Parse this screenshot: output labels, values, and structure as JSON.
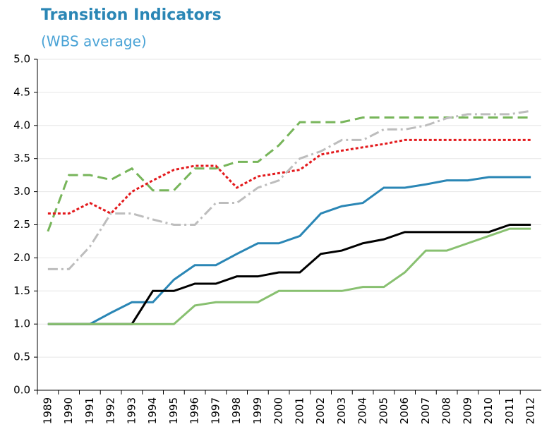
{
  "chart_data": {
    "type": "line",
    "title": "Transition Indicators",
    "subtitle": "(WBS average)",
    "categories": [
      "1989",
      "1990",
      "1991",
      "1992",
      "1993",
      "1994",
      "1995",
      "1996",
      "1997",
      "1998",
      "1999",
      "2000",
      "2001",
      "2002",
      "2003",
      "2004",
      "2005",
      "2006",
      "2007",
      "2008",
      "2009",
      "2010",
      "2011",
      "2012"
    ],
    "series": [
      {
        "color": "#77b55a",
        "dash": "dashed",
        "values": [
          2.4,
          3.25,
          3.25,
          3.18,
          3.35,
          3.02,
          3.02,
          3.35,
          3.35,
          3.45,
          3.45,
          3.7,
          4.05,
          4.05,
          4.05,
          4.12,
          4.12,
          4.12,
          4.12,
          4.12,
          4.12,
          4.12,
          4.12,
          4.12
        ]
      },
      {
        "color": "#e3191c",
        "dash": "dotted",
        "values": [
          2.67,
          2.67,
          2.83,
          2.67,
          3.0,
          3.17,
          3.33,
          3.39,
          3.39,
          3.06,
          3.23,
          3.28,
          3.33,
          3.56,
          3.62,
          3.67,
          3.72,
          3.78,
          3.78,
          3.78,
          3.78,
          3.78,
          3.78,
          3.78
        ]
      },
      {
        "color": "#bdbdbd",
        "dash": "dashdot",
        "values": [
          1.83,
          1.83,
          2.17,
          2.67,
          2.67,
          2.58,
          2.5,
          2.5,
          2.83,
          2.83,
          3.06,
          3.17,
          3.5,
          3.61,
          3.78,
          3.78,
          3.94,
          3.94,
          4.0,
          4.11,
          4.17,
          4.17,
          4.17,
          4.22
        ]
      },
      {
        "color": "#2a86b5",
        "dash": "solid",
        "values": [
          1.0,
          1.0,
          1.0,
          1.17,
          1.33,
          1.33,
          1.67,
          1.89,
          1.89,
          2.06,
          2.22,
          2.22,
          2.33,
          2.67,
          2.78,
          2.83,
          3.06,
          3.06,
          3.11,
          3.17,
          3.17,
          3.22,
          3.22,
          3.22
        ]
      },
      {
        "color": "#000000",
        "dash": "solid",
        "values": [
          1.0,
          1.0,
          1.0,
          1.0,
          1.0,
          1.5,
          1.5,
          1.61,
          1.61,
          1.72,
          1.72,
          1.78,
          1.78,
          2.06,
          2.11,
          2.22,
          2.28,
          2.39,
          2.39,
          2.39,
          2.39,
          2.39,
          2.5,
          2.5
        ]
      },
      {
        "color": "#88c070",
        "dash": "solid",
        "values": [
          1.0,
          1.0,
          1.0,
          1.0,
          1.0,
          1.0,
          1.0,
          1.28,
          1.33,
          1.33,
          1.33,
          1.5,
          1.5,
          1.5,
          1.5,
          1.56,
          1.56,
          1.78,
          2.11,
          2.11,
          2.22,
          2.33,
          2.44,
          2.44
        ]
      }
    ],
    "ylim": [
      0,
      5
    ],
    "yticks": [
      {
        "value": 0,
        "label": "0.0"
      },
      0.5,
      {
        "value": 1,
        "label": "1.0"
      },
      1.5,
      {
        "value": 2,
        "label": "2.0"
      },
      2.5,
      {
        "value": 3,
        "label": "3.0"
      },
      3.5,
      {
        "value": 4,
        "label": "4.0"
      },
      4.5,
      {
        "value": 5,
        "label": "5.0"
      }
    ],
    "grid": true
  }
}
